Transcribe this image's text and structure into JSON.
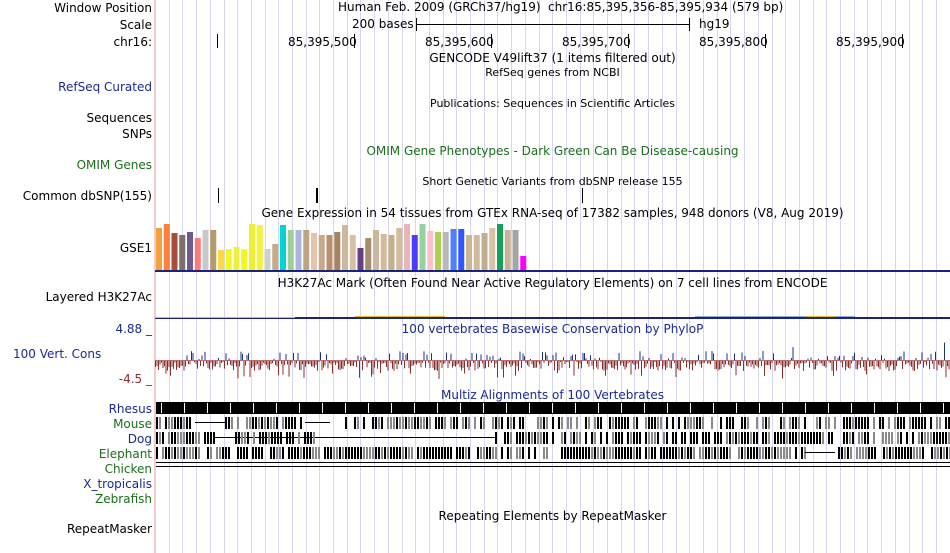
{
  "header": {
    "window_position_label": "Window Position",
    "scale_label": "Scale",
    "chrom_label": "chr16:",
    "assembly": "Human Feb. 2009 (GRCh37/hg19)",
    "position": "chr16:85,395,356-85,395,934 (579 bp)",
    "scale_text": "200 bases",
    "scale_db": "hg19",
    "ruler_ticks": [
      "85,395,500",
      "85,395,600",
      "85,395,700",
      "85,395,800",
      "85,395,900"
    ]
  },
  "tracks": {
    "gencode_title": "GENCODE V49lift37 (1 items filtered out)",
    "refseq_label": "RefSeq Curated",
    "refseq_title": "RefSeq genes from NCBI",
    "pubs_title": "Publications: Sequences in Scientific Articles",
    "sequences_label": "Sequences",
    "snps_label": "SNPs",
    "omim_label": "OMIM Genes",
    "omim_title": "OMIM Gene Phenotypes - Dark Green Can Be Disease-causing",
    "dbsnp_title": "Short Genetic Variants from dbSNP release 155",
    "dbsnp_label": "Common dbSNP(155)",
    "gtex_title": "Gene Expression in 54 tissues from GTEx RNA-seq of 17382 samples, 948 donors (V8, Aug 2019)",
    "gse1_label": "GSE1",
    "h3k27ac_label": "Layered H3K27Ac",
    "h3k27ac_title": "H3K27Ac Mark (Often Found Near Active Regulatory Elements) on 7 cell lines from ENCODE",
    "cons_title": "100 vertebrates Basewise Conservation by PhyloP",
    "cons_label": "100 Vert. Cons",
    "cons_max": "4.88 _",
    "cons_min": "-4.5 _",
    "multiz_title": "Multiz Alignments of 100 Vertebrates",
    "species": [
      "Rhesus",
      "Mouse",
      "Dog",
      "Elephant",
      "Chicken",
      "X_tropicalis",
      "Zebrafish"
    ],
    "repeat_title": "Repeating Elements by RepeatMasker",
    "repeat_label": "RepeatMasker"
  },
  "gtex": {
    "colors": [
      "#f2a23c",
      "#ff7f3f",
      "#aa4b3c",
      "#7d6f6f",
      "#6e5a8e",
      "#ff7b7b",
      "#c8c8c8",
      "#b59b6a",
      "#ffd940",
      "#f5f520",
      "#f0f03c",
      "#f5f51e",
      "#eeee33",
      "#f3f33a",
      "#cfcfcf",
      "#c7aa88",
      "#00d4d4",
      "#9ecf9b",
      "#a9b6e0",
      "#bfa383",
      "#e7c3a9",
      "#c8a98c",
      "#b88e6e",
      "#a68360",
      "#cdb89f",
      "#d8c0a8",
      "#6a3f82",
      "#a38e6e",
      "#cbb79d",
      "#d6b998",
      "#c4b08b",
      "#d4bc9a",
      "#e8b6b6",
      "#4b3cff",
      "#96d0a0",
      "#ffc0cb",
      "#b2d04f",
      "#b8b8b8",
      "#4f7fff",
      "#3158ff",
      "#ccb497",
      "#d1b99c",
      "#c3ab90",
      "#d7c1a7",
      "#16a05a",
      "#c8b298",
      "#a5a5a5",
      "#ff00ff"
    ],
    "values": [
      42,
      46,
      37,
      35,
      38,
      32,
      40,
      40,
      20,
      21,
      23,
      21,
      46,
      45,
      21,
      26,
      45,
      40,
      40,
      40,
      37,
      35,
      35,
      38,
      45,
      35,
      22,
      32,
      40,
      36,
      35,
      42,
      46,
      35,
      46,
      39,
      38,
      38,
      41,
      41,
      35,
      35,
      37,
      42,
      46,
      40,
      40,
      14
    ]
  },
  "colors": {
    "label_blue": "#1c2a8f",
    "label_green": "#1b6e1b",
    "cons_pos": "#1d2f8d",
    "cons_neg": "#8c2d2d",
    "h3k27ac_line": "#1a237e",
    "gridline": "#d6d6ee"
  }
}
